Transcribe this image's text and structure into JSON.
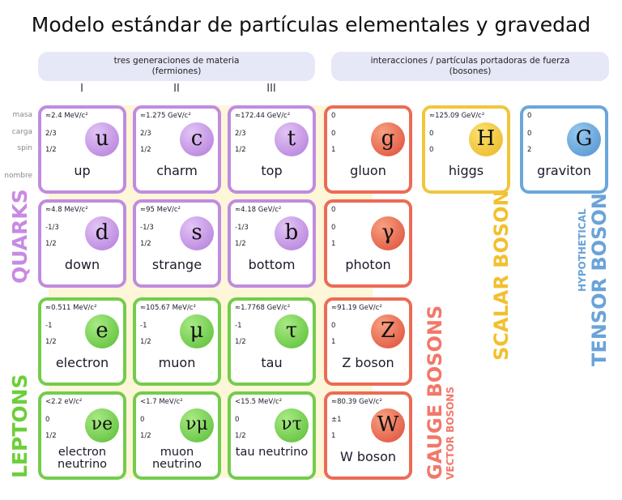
{
  "title": "Modelo estándar de partículas elementales y gravedad",
  "headers": {
    "matter": {
      "line1": "tres generaciones de materia",
      "line2": "(fermiones)"
    },
    "forces": {
      "line1": "interacciones / partículas portadoras de fuerza",
      "line2": "(bosones)"
    },
    "generations": [
      "I",
      "II",
      "III"
    ]
  },
  "row_labels": {
    "mass": "masa",
    "charge": "carga",
    "spin": "spin",
    "name": "nombre"
  },
  "groups": {
    "quarks": "QUARKS",
    "leptons": "LEPTONS",
    "gauge": "GAUGE BOSONS",
    "vector": "VECTOR BOSONS",
    "scalar": "SCALAR BOSONS",
    "tensor": "TENSOR BOSONS",
    "hypothetical": "HYPOTHETICAL"
  },
  "colors": {
    "quark": "#c08be0",
    "lepton": "#74cc4c",
    "gauge": "#ec6b55",
    "scalar": "#f0c63c",
    "tensor": "#6aa7da"
  },
  "particles": [
    {
      "mass": "≈2.4 MeV/c²",
      "charge": "2/3",
      "spin": "1/2",
      "symbol": "u",
      "name": "up",
      "type": "quark"
    },
    {
      "mass": "≈1.275 GeV/c²",
      "charge": "2/3",
      "spin": "1/2",
      "symbol": "c",
      "name": "charm",
      "type": "quark"
    },
    {
      "mass": "≈172.44 GeV/c²",
      "charge": "2/3",
      "spin": "1/2",
      "symbol": "t",
      "name": "top",
      "type": "quark"
    },
    {
      "mass": "0",
      "charge": "0",
      "spin": "1",
      "symbol": "g",
      "name": "gluon",
      "type": "gauge"
    },
    {
      "mass": "≈125.09 GeV/c²",
      "charge": "0",
      "spin": "0",
      "symbol": "H",
      "name": "higgs",
      "type": "scalar"
    },
    {
      "mass": "0",
      "charge": "0",
      "spin": "2",
      "symbol": "G",
      "name": "graviton",
      "type": "tensor"
    },
    {
      "mass": "≈4.8 MeV/c²",
      "charge": "-1/3",
      "spin": "1/2",
      "symbol": "d",
      "name": "down",
      "type": "quark"
    },
    {
      "mass": "≈95 MeV/c²",
      "charge": "-1/3",
      "spin": "1/2",
      "symbol": "s",
      "name": "strange",
      "type": "quark"
    },
    {
      "mass": "≈4.18 GeV/c²",
      "charge": "-1/3",
      "spin": "1/2",
      "symbol": "b",
      "name": "bottom",
      "type": "quark"
    },
    {
      "mass": "0",
      "charge": "0",
      "spin": "1",
      "symbol": "γ",
      "name": "photon",
      "type": "gauge"
    },
    {
      "mass": "≈0.511 MeV/c²",
      "charge": "-1",
      "spin": "1/2",
      "symbol": "e",
      "name": "electron",
      "type": "lepton"
    },
    {
      "mass": "≈105.67 MeV/c²",
      "charge": "-1",
      "spin": "1/2",
      "symbol": "μ",
      "name": "muon",
      "type": "lepton"
    },
    {
      "mass": "≈1.7768 GeV/c²",
      "charge": "-1",
      "spin": "1/2",
      "symbol": "τ",
      "name": "tau",
      "type": "lepton"
    },
    {
      "mass": "≈91.19 GeV/c²",
      "charge": "0",
      "spin": "1",
      "symbol": "Z",
      "name": "Z boson",
      "type": "gauge"
    },
    {
      "mass": "<2.2 eV/c²",
      "charge": "0",
      "spin": "1/2",
      "symbol": "νe",
      "name": "electron neutrino",
      "type": "lepton"
    },
    {
      "mass": "<1.7 MeV/c²",
      "charge": "0",
      "spin": "1/2",
      "symbol": "νμ",
      "name": "muon neutrino",
      "type": "lepton"
    },
    {
      "mass": "<15.5 MeV/c²",
      "charge": "0",
      "spin": "1/2",
      "symbol": "ντ",
      "name": "tau neutrino",
      "type": "lepton"
    },
    {
      "mass": "≈80.39 GeV/c²",
      "charge": "±1",
      "spin": "1",
      "symbol": "W",
      "name": "W boson",
      "type": "gauge"
    }
  ]
}
